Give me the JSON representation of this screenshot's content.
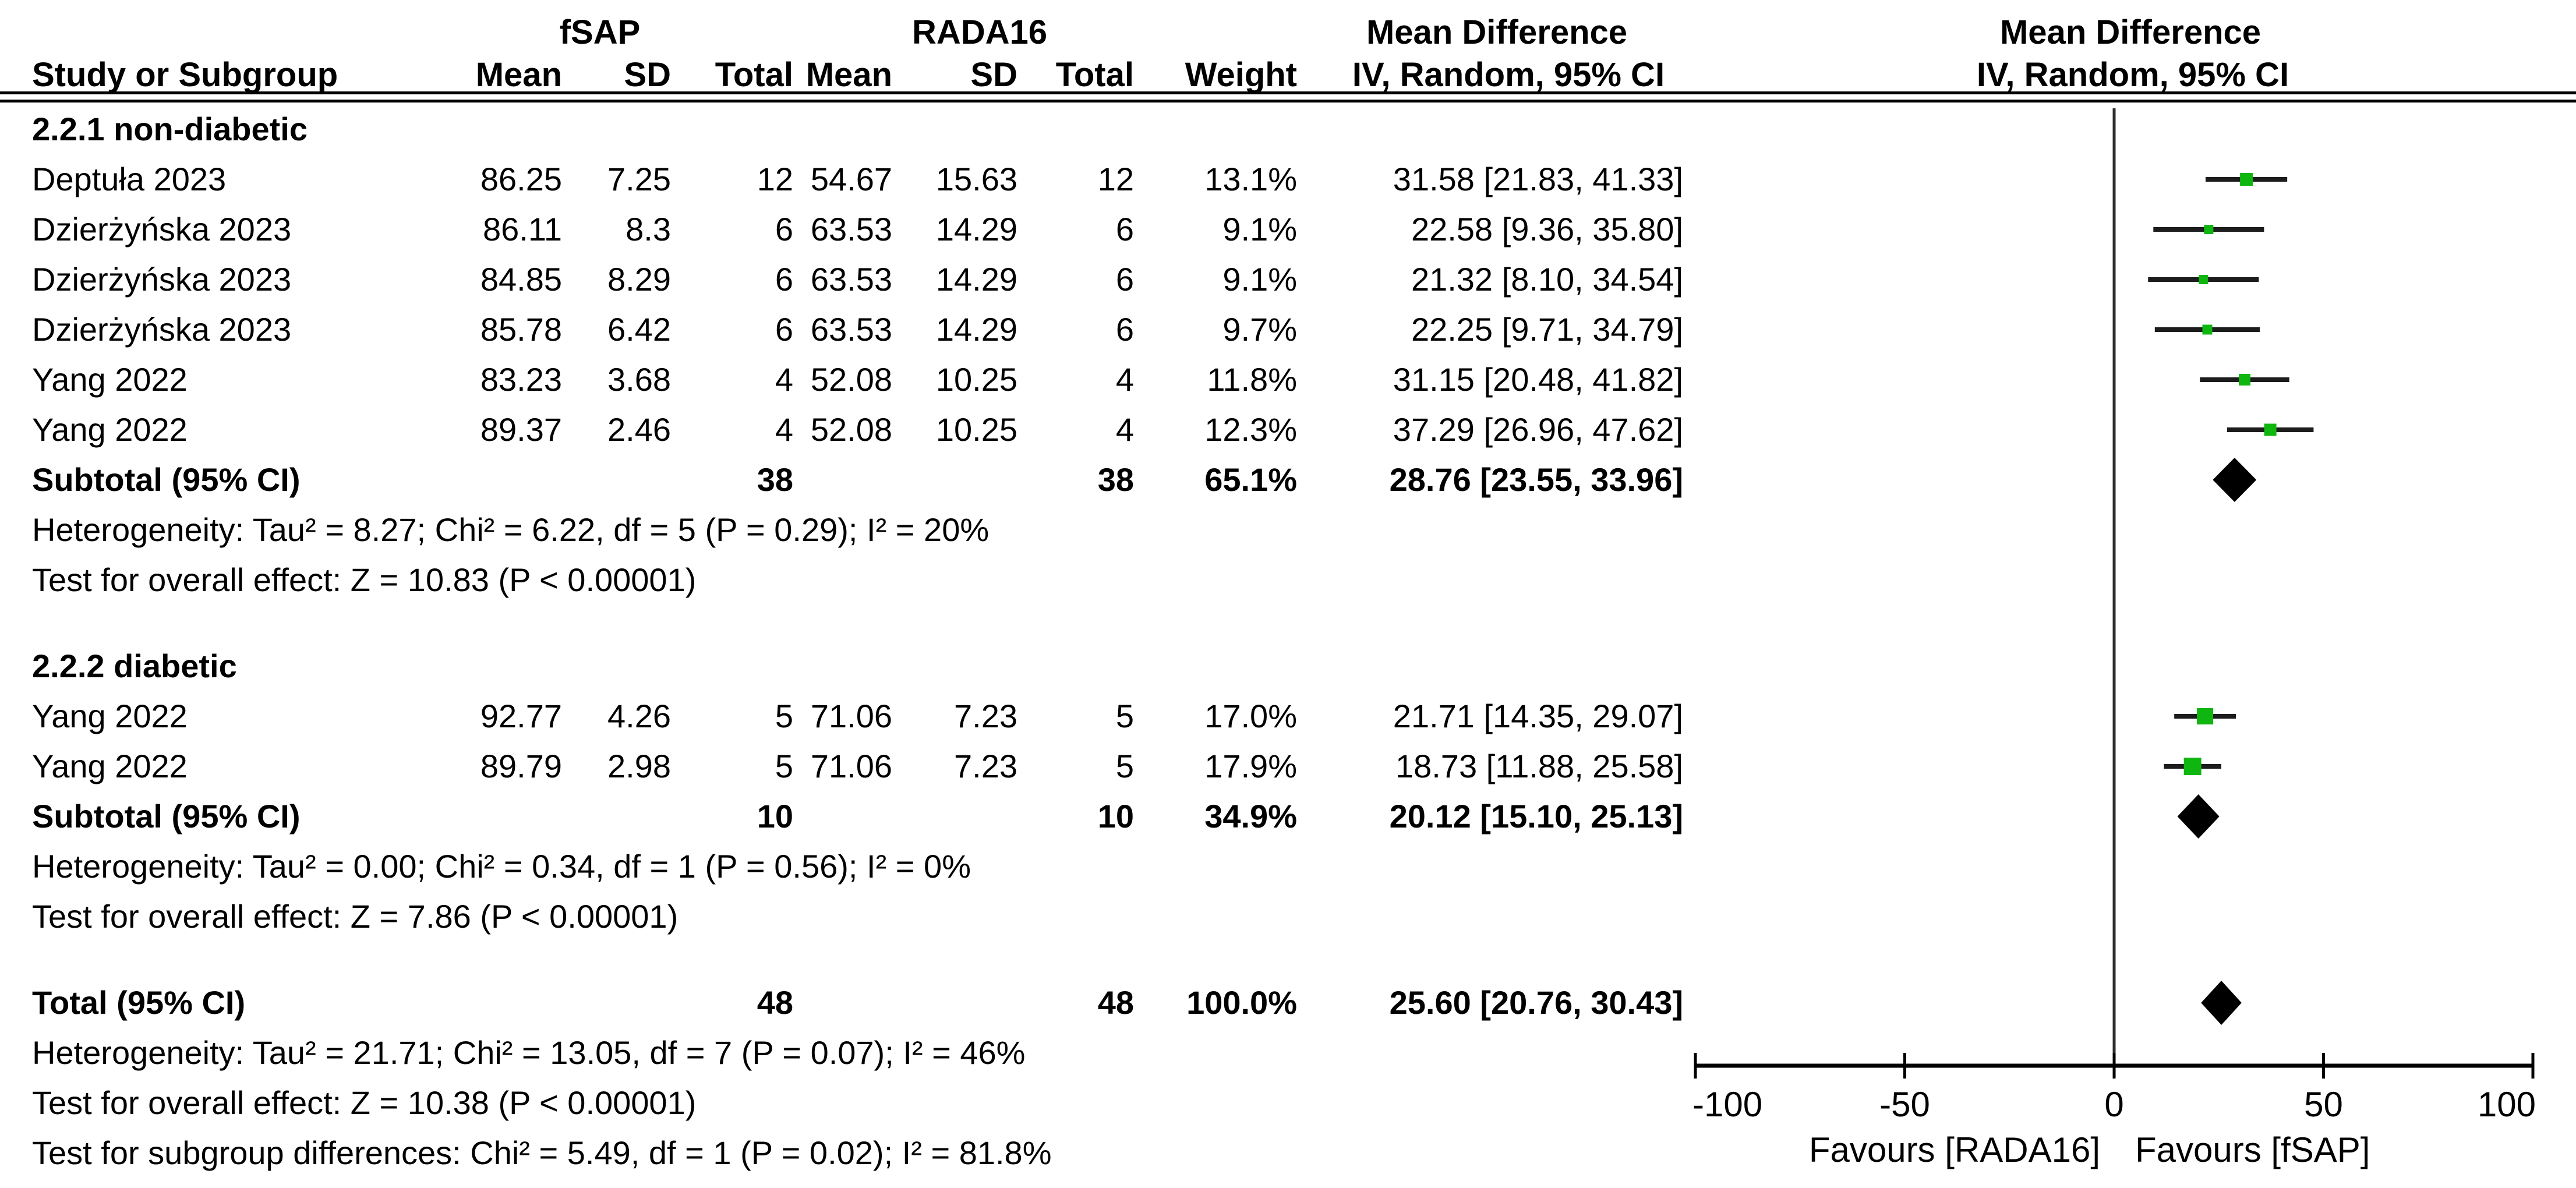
{
  "header": {
    "group1": "fSAP",
    "group2": "RADA16",
    "effect_title": "Mean Difference",
    "effect_sub": "IV, Random, 95% CI",
    "plot_title": "Mean Difference",
    "plot_sub": "IV, Random, 95% CI",
    "columns": [
      "Study or Subgroup",
      "Mean",
      "SD",
      "Total",
      "Mean",
      "SD",
      "Total",
      "Weight"
    ]
  },
  "chart_data": {
    "type": "forest",
    "effect_measure": "Mean Difference",
    "model": "IV, Random, 95% CI",
    "marker_color": "#10B610",
    "ci_color": "#1c1c1c",
    "diamond_color": "#000000",
    "zero_line_color": "#2e2e2e",
    "axis_color": "#000000",
    "axis": {
      "min": -100,
      "max": 100,
      "ticks": [
        -100,
        -50,
        0,
        50,
        100
      ],
      "favours_left": "Favours [RADA16]",
      "favours_right": "Favours [fSAP]"
    },
    "rows": [
      {
        "type": "section",
        "label": "2.2.1 non-diabetic"
      },
      {
        "type": "study",
        "label": "Deptuła 2023",
        "mean1": "86.25",
        "sd1": "7.25",
        "total1": "12",
        "mean2": "54.67",
        "sd2": "15.63",
        "total2": "12",
        "weight": "13.1%",
        "ci": "31.58 [21.83, 41.33]",
        "est": 31.58,
        "lo": 21.83,
        "hi": 41.33,
        "weight_pct": 13.1
      },
      {
        "type": "study",
        "label": "Dzierżyńska 2023",
        "mean1": "86.11",
        "sd1": "8.3",
        "total1": "6",
        "mean2": "63.53",
        "sd2": "14.29",
        "total2": "6",
        "weight": "9.1%",
        "ci": "22.58 [9.36, 35.80]",
        "est": 22.58,
        "lo": 9.36,
        "hi": 35.8,
        "weight_pct": 9.1
      },
      {
        "type": "study",
        "label": "Dzierżyńska 2023",
        "mean1": "84.85",
        "sd1": "8.29",
        "total1": "6",
        "mean2": "63.53",
        "sd2": "14.29",
        "total2": "6",
        "weight": "9.1%",
        "ci": "21.32 [8.10, 34.54]",
        "est": 21.32,
        "lo": 8.1,
        "hi": 34.54,
        "weight_pct": 9.1
      },
      {
        "type": "study",
        "label": "Dzierżyńska 2023",
        "mean1": "85.78",
        "sd1": "6.42",
        "total1": "6",
        "mean2": "63.53",
        "sd2": "14.29",
        "total2": "6",
        "weight": "9.7%",
        "ci": "22.25 [9.71, 34.79]",
        "est": 22.25,
        "lo": 9.71,
        "hi": 34.79,
        "weight_pct": 9.7
      },
      {
        "type": "study",
        "label": "Yang 2022",
        "mean1": "83.23",
        "sd1": "3.68",
        "total1": "4",
        "mean2": "52.08",
        "sd2": "10.25",
        "total2": "4",
        "weight": "11.8%",
        "ci": "31.15 [20.48, 41.82]",
        "est": 31.15,
        "lo": 20.48,
        "hi": 41.82,
        "weight_pct": 11.8
      },
      {
        "type": "study",
        "label": "Yang 2022",
        "mean1": "89.37",
        "sd1": "2.46",
        "total1": "4",
        "mean2": "52.08",
        "sd2": "10.25",
        "total2": "4",
        "weight": "12.3%",
        "ci": "37.29 [26.96, 47.62]",
        "est": 37.29,
        "lo": 26.96,
        "hi": 47.62,
        "weight_pct": 12.3
      },
      {
        "type": "subtotal",
        "label": "Subtotal (95% CI)",
        "total1": "38",
        "total2": "38",
        "weight": "65.1%",
        "ci": "28.76 [23.55, 33.96]",
        "est": 28.76,
        "lo": 23.55,
        "hi": 33.96
      },
      {
        "type": "note",
        "label": "Heterogeneity: Tau² = 8.27; Chi² = 6.22, df = 5 (P = 0.29); I² = 20%"
      },
      {
        "type": "note",
        "label": "Test for overall effect: Z = 10.83 (P < 0.00001)"
      },
      {
        "type": "section",
        "label": "2.2.2 diabetic"
      },
      {
        "type": "study",
        "label": "Yang 2022",
        "mean1": "92.77",
        "sd1": "4.26",
        "total1": "5",
        "mean2": "71.06",
        "sd2": "7.23",
        "total2": "5",
        "weight": "17.0%",
        "ci": "21.71 [14.35, 29.07]",
        "est": 21.71,
        "lo": 14.35,
        "hi": 29.07,
        "weight_pct": 17.0
      },
      {
        "type": "study",
        "label": "Yang 2022",
        "mean1": "89.79",
        "sd1": "2.98",
        "total1": "5",
        "mean2": "71.06",
        "sd2": "7.23",
        "total2": "5",
        "weight": "17.9%",
        "ci": "18.73 [11.88, 25.58]",
        "est": 18.73,
        "lo": 11.88,
        "hi": 25.58,
        "weight_pct": 17.9
      },
      {
        "type": "subtotal",
        "label": "Subtotal (95% CI)",
        "total1": "10",
        "total2": "10",
        "weight": "34.9%",
        "ci": "20.12 [15.10, 25.13]",
        "est": 20.12,
        "lo": 15.1,
        "hi": 25.13
      },
      {
        "type": "note",
        "label": "Heterogeneity: Tau² = 0.00; Chi² = 0.34, df = 1 (P = 0.56); I² = 0%"
      },
      {
        "type": "note",
        "label": "Test for overall effect: Z = 7.86 (P < 0.00001)"
      },
      {
        "type": "total",
        "label": "Total (95% CI)",
        "total1": "48",
        "total2": "48",
        "weight": "100.0%",
        "ci": "25.60 [20.76, 30.43]",
        "est": 25.6,
        "lo": 20.76,
        "hi": 30.43
      },
      {
        "type": "note",
        "label": "Heterogeneity: Tau² = 21.71; Chi² = 13.05, df = 7 (P = 0.07); I² = 46%"
      },
      {
        "type": "note",
        "label": "Test for overall effect: Z = 10.38 (P < 0.00001)"
      },
      {
        "type": "note",
        "label": "Test for subgroup differences: Chi² = 5.49, df = 1 (P = 0.02); I² = 81.8%"
      }
    ]
  }
}
